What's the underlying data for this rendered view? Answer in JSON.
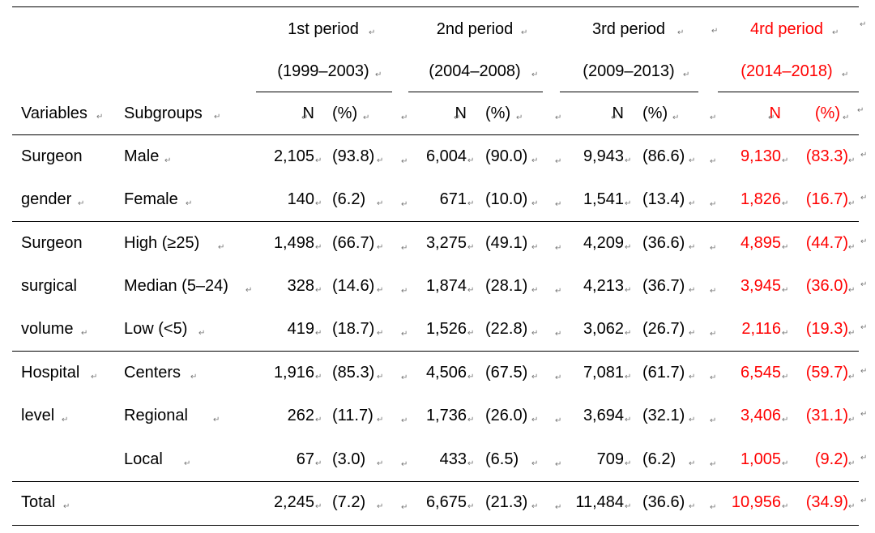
{
  "mark": "↵",
  "header": {
    "variables": "Variables",
    "subgroups": "Subgroups",
    "n": "N",
    "pct": "(%)",
    "periods": [
      {
        "name": "1st period",
        "years": "(1999–2003)",
        "highlight": false
      },
      {
        "name": "2nd period",
        "years": "(2004–2008)",
        "highlight": false
      },
      {
        "name": "3rd period",
        "years": "(2009–2013)",
        "highlight": false
      },
      {
        "name": "4rd period",
        "years": "(2014–2018)",
        "highlight": true
      }
    ]
  },
  "rows": [
    {
      "variable": "Surgeon",
      "subgroup": "Male",
      "cells": [
        [
          "2,105",
          "(93.8)"
        ],
        [
          "6,004",
          "(90.0)"
        ],
        [
          "9,943",
          "(86.6)"
        ],
        [
          "9,130",
          "(83.3)"
        ]
      ]
    },
    {
      "variable": "gender",
      "subgroup": "Female",
      "cells": [
        [
          "140",
          "(6.2)"
        ],
        [
          "671",
          "(10.0)"
        ],
        [
          "1,541",
          "(13.4)"
        ],
        [
          "1,826",
          "(16.7)"
        ]
      ]
    },
    {
      "variable": "Surgeon",
      "subgroup": "High (≥25)",
      "cells": [
        [
          "1,498",
          "(66.7)"
        ],
        [
          "3,275",
          "(49.1)"
        ],
        [
          "4,209",
          "(36.6)"
        ],
        [
          "4,895",
          "(44.7)"
        ]
      ]
    },
    {
      "variable": "surgical",
      "subgroup": "Median (5–24)",
      "cells": [
        [
          "328",
          "(14.6)"
        ],
        [
          "1,874",
          "(28.1)"
        ],
        [
          "4,213",
          "(36.7)"
        ],
        [
          "3,945",
          "(36.0)"
        ]
      ]
    },
    {
      "variable": "volume",
      "subgroup": "Low (<5)",
      "cells": [
        [
          "419",
          "(18.7)"
        ],
        [
          "1,526",
          "(22.8)"
        ],
        [
          "3,062",
          "(26.7)"
        ],
        [
          "2,116",
          "(19.3)"
        ]
      ]
    },
    {
      "variable": "Hospital",
      "subgroup": "Centers",
      "cells": [
        [
          "1,916",
          "(85.3)"
        ],
        [
          "4,506",
          "(67.5)"
        ],
        [
          "7,081",
          "(61.7)"
        ],
        [
          "6,545",
          "(59.7)"
        ]
      ]
    },
    {
      "variable": "level",
      "subgroup": "Regional",
      "cells": [
        [
          "262",
          "(11.7)"
        ],
        [
          "1,736",
          "(26.0)"
        ],
        [
          "3,694",
          "(32.1)"
        ],
        [
          "3,406",
          "(31.1)"
        ]
      ]
    },
    {
      "variable": "",
      "subgroup": "Local",
      "cells": [
        [
          "67",
          "(3.0)"
        ],
        [
          "433",
          "(6.5)"
        ],
        [
          "709",
          "(6.2)"
        ],
        [
          "1,005",
          "(9.2)"
        ]
      ]
    },
    {
      "variable": "Total",
      "subgroup": "",
      "cells": [
        [
          "2,245",
          "(7.2)"
        ],
        [
          "6,675",
          "(21.3)"
        ],
        [
          "11,484",
          "(36.6)"
        ],
        [
          "10,956",
          "(34.9)"
        ]
      ]
    }
  ]
}
